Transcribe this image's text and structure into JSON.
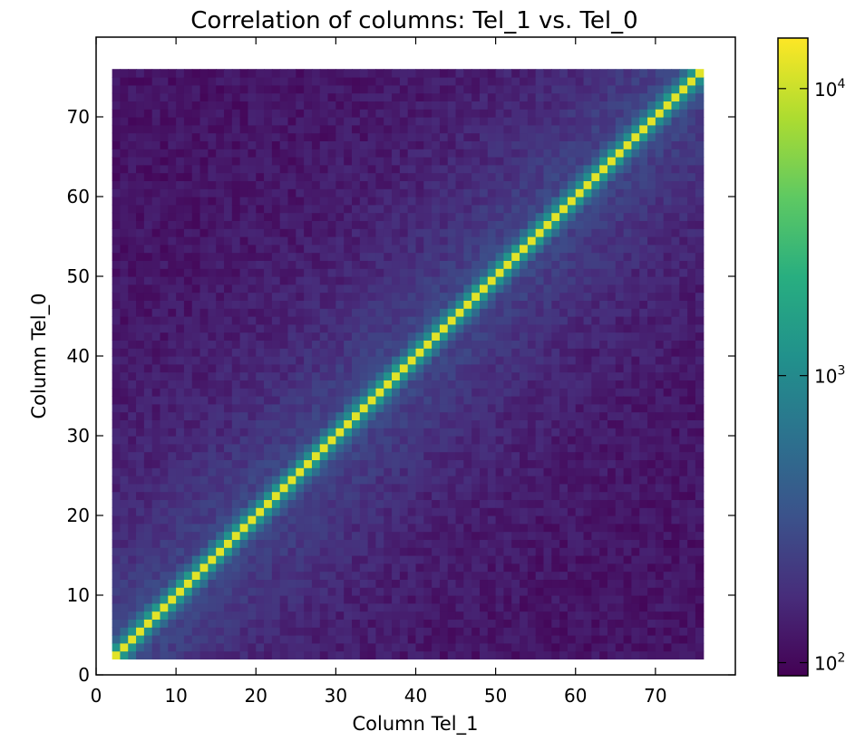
{
  "chart_data": {
    "type": "heatmap",
    "title": "Correlation of columns: Tel_1 vs. Tel_0",
    "xlabel": "Column Tel_1",
    "ylabel": "Column Tel_0",
    "xlim": [
      0,
      80
    ],
    "ylim": [
      0,
      80
    ],
    "x_ticks": [
      0,
      10,
      20,
      30,
      40,
      50,
      60,
      70
    ],
    "y_ticks": [
      0,
      10,
      20,
      30,
      40,
      50,
      60,
      70
    ],
    "x_tick_labels": [
      "0",
      "10",
      "20",
      "30",
      "40",
      "50",
      "60",
      "70"
    ],
    "y_tick_labels": [
      "0",
      "10",
      "20",
      "30",
      "40",
      "50",
      "60",
      "70"
    ],
    "bin_range": [
      2,
      76
    ],
    "bin_width": 1,
    "diagonal_count": 12000,
    "near_diagonal_counts": [
      1200,
      500,
      280
    ],
    "background_count_range": [
      120,
      300
    ],
    "colorbar": {
      "scale": "log",
      "min": 90,
      "max": 15000,
      "colormap": "viridis",
      "tick_values": [
        100,
        1000,
        10000
      ],
      "tick_labels": [
        {
          "base": "10",
          "exp": "2"
        },
        {
          "base": "10",
          "exp": "3"
        },
        {
          "base": "10",
          "exp": "4"
        }
      ]
    }
  }
}
